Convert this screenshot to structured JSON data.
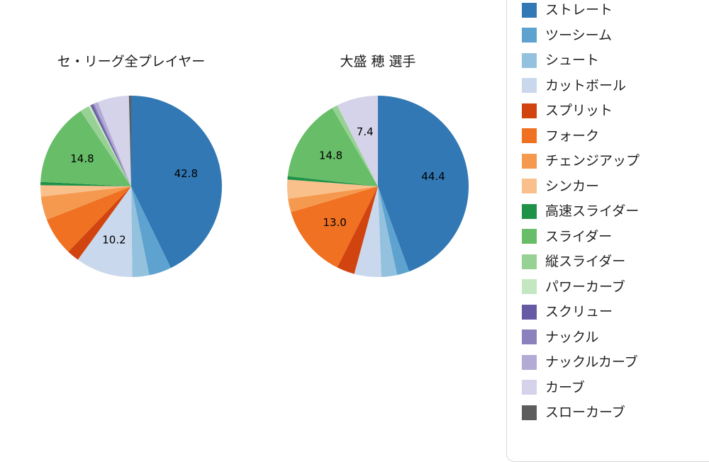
{
  "chart_data": [
    {
      "type": "pie",
      "title": "セ・リーグ全プレイヤー",
      "legend_position": "right",
      "start_angle": "top",
      "direction": "clockwise",
      "categories": [
        "ストレート",
        "ツーシーム",
        "シュート",
        "カットボール",
        "スプリット",
        "フォーク",
        "チェンジアップ",
        "シンカー",
        "高速スライダー",
        "スライダー",
        "縦スライダー",
        "パワーカーブ",
        "スクリュー",
        "ナックル",
        "ナックルカーブ",
        "カーブ",
        "スローカーブ"
      ],
      "values": [
        42.8,
        4.0,
        3.0,
        10.2,
        2.2,
        6.8,
        4.2,
        2.0,
        0.6,
        14.8,
        1.6,
        0.4,
        0.4,
        0.3,
        0.7,
        5.6,
        0.4
      ],
      "data_labels": [
        {
          "category": "ストレート",
          "text": "42.8"
        },
        {
          "category": "カットボール",
          "text": "10.2"
        },
        {
          "category": "スライダー",
          "text": "14.8"
        }
      ]
    },
    {
      "type": "pie",
      "title": "大盛 穂 選手",
      "legend_position": "right",
      "start_angle": "top",
      "direction": "clockwise",
      "categories": [
        "ストレート",
        "ツーシーム",
        "シュート",
        "カットボール",
        "スプリット",
        "フォーク",
        "チェンジアップ",
        "シンカー",
        "高速スライダー",
        "スライダー",
        "縦スライダー",
        "パワーカーブ",
        "スクリュー",
        "ナックル",
        "ナックルカーブ",
        "カーブ",
        "スローカーブ"
      ],
      "values": [
        44.4,
        2.2,
        2.8,
        4.8,
        3.2,
        13.0,
        2.4,
        3.4,
        0.6,
        14.8,
        1.0,
        0,
        0,
        0,
        0,
        7.4,
        0
      ],
      "data_labels": [
        {
          "category": "ストレート",
          "text": "44.4"
        },
        {
          "category": "フォーク",
          "text": "13.0"
        },
        {
          "category": "スライダー",
          "text": "14.8"
        },
        {
          "category": "カーブ",
          "text": "7.4"
        }
      ]
    }
  ],
  "legend": {
    "items": [
      {
        "label": "ストレート",
        "color": "#3178b4"
      },
      {
        "label": "ツーシーム",
        "color": "#5ea3cf"
      },
      {
        "label": "シュート",
        "color": "#94c1dd"
      },
      {
        "label": "カットボール",
        "color": "#c9d8ed"
      },
      {
        "label": "スプリット",
        "color": "#d1440f"
      },
      {
        "label": "フォーク",
        "color": "#ef7121"
      },
      {
        "label": "チェンジアップ",
        "color": "#f5994f"
      },
      {
        "label": "シンカー",
        "color": "#f9c08b"
      },
      {
        "label": "高速スライダー",
        "color": "#1f9148"
      },
      {
        "label": "スライダー",
        "color": "#68bd68"
      },
      {
        "label": "縦スライダー",
        "color": "#97d194"
      },
      {
        "label": "パワーカーブ",
        "color": "#c4e7c1"
      },
      {
        "label": "スクリュー",
        "color": "#675aa5"
      },
      {
        "label": "ナックル",
        "color": "#8b81bd"
      },
      {
        "label": "ナックルカーブ",
        "color": "#b3abd6"
      },
      {
        "label": "カーブ",
        "color": "#d5d3e9"
      },
      {
        "label": "スローカーブ",
        "color": "#5d5d5d"
      }
    ]
  }
}
